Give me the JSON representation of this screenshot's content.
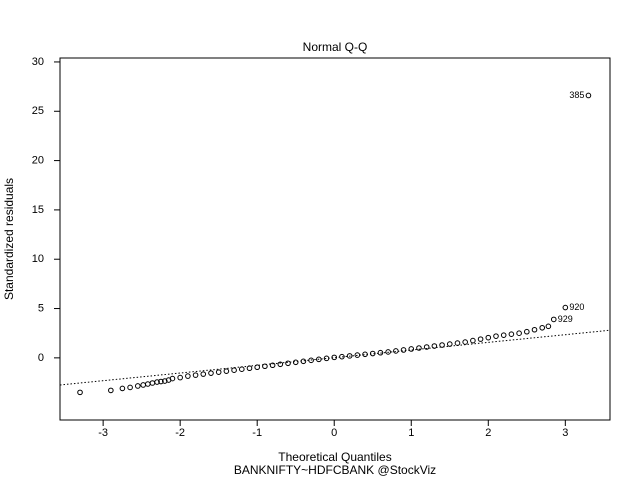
{
  "chart_data": {
    "type": "scatter",
    "title": "Normal Q-Q",
    "x_label": "Theoretical Quantiles",
    "y_label": "Standardized residuals",
    "subtitle": "BANKNIFTY~HDFCBANK @StockViz",
    "series": [
      {
        "color": "#000000",
        "x": [
          -3.3,
          -2.9,
          -2.75,
          -2.65,
          -2.55,
          -2.48,
          -2.42,
          -2.36,
          -2.3,
          -2.25,
          -2.2,
          -2.15,
          -2.1,
          -2.0,
          -1.9,
          -1.8,
          -1.7,
          -1.6,
          -1.5,
          -1.4,
          -1.3,
          -1.2,
          -1.1,
          -1.0,
          -0.9,
          -0.8,
          -0.7,
          -0.6,
          -0.5,
          -0.4,
          -0.3,
          -0.2,
          -0.1,
          0,
          0.1,
          0.2,
          0.3,
          0.4,
          0.5,
          0.6,
          0.7,
          0.8,
          0.9,
          1.0,
          1.1,
          1.2,
          1.3,
          1.4,
          1.5,
          1.6,
          1.7,
          1.8,
          1.9,
          2.0,
          2.1,
          2.2,
          2.3,
          2.4,
          2.5,
          2.6,
          2.7,
          2.78
        ],
        "values": [
          -3.5,
          -3.3,
          -3.1,
          -3.0,
          -2.85,
          -2.75,
          -2.65,
          -2.55,
          -2.45,
          -2.4,
          -2.35,
          -2.25,
          -2.1,
          -2.0,
          -1.85,
          -1.75,
          -1.65,
          -1.55,
          -1.45,
          -1.35,
          -1.25,
          -1.15,
          -1.05,
          -0.95,
          -0.85,
          -0.75,
          -0.65,
          -0.55,
          -0.45,
          -0.35,
          -0.25,
          -0.15,
          -0.05,
          0.05,
          0.12,
          0.2,
          0.28,
          0.36,
          0.44,
          0.52,
          0.6,
          0.7,
          0.8,
          0.9,
          1.0,
          1.1,
          1.2,
          1.3,
          1.4,
          1.5,
          1.6,
          1.75,
          1.9,
          2.05,
          2.2,
          2.3,
          2.4,
          2.5,
          2.65,
          2.85,
          3.05,
          3.2
        ]
      }
    ],
    "labeled_points": {
      "labels": [
        "385",
        "920",
        "929"
      ],
      "x": [
        3.3,
        3.0,
        2.85
      ],
      "values": [
        26.6,
        5.1,
        3.9
      ]
    },
    "reference_line": {
      "x": [
        -3.56,
        3.58
      ],
      "values": [
        -2.75,
        2.8
      ]
    },
    "xlim": [
      -3.56,
      3.58
    ],
    "ylim": [
      -6.3,
      30.4
    ],
    "xticks": [
      -3,
      -2,
      -1,
      0,
      1,
      2,
      3
    ],
    "yticks": [
      0,
      5,
      10,
      15,
      20,
      25,
      30
    ]
  }
}
